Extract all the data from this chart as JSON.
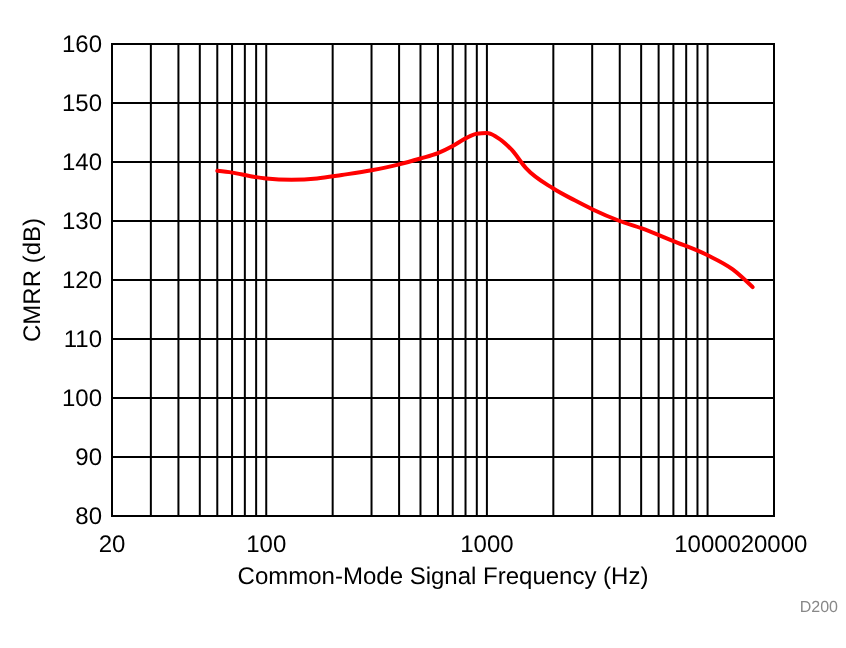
{
  "chart_data": {
    "type": "line",
    "xlabel": "Common-Mode Signal Frequency (Hz)",
    "ylabel": "CMRR (dB)",
    "log": "x",
    "grid": true,
    "xlim": [
      20,
      20000
    ],
    "xticks": [
      20,
      {
        "value": 30,
        "label": null
      },
      {
        "value": 40,
        "label": null
      },
      {
        "value": 50,
        "label": null
      },
      {
        "value": 60,
        "label": null
      },
      {
        "value": 70,
        "label": null
      },
      {
        "value": 80,
        "label": null
      },
      {
        "value": 90,
        "label": null
      },
      100,
      {
        "value": 200,
        "label": null
      },
      {
        "value": 300,
        "label": null
      },
      {
        "value": 400,
        "label": null
      },
      {
        "value": 500,
        "label": null
      },
      {
        "value": 600,
        "label": null
      },
      {
        "value": 700,
        "label": null
      },
      {
        "value": 800,
        "label": null
      },
      {
        "value": 900,
        "label": null
      },
      1000,
      {
        "value": 2000,
        "label": null
      },
      {
        "value": 3000,
        "label": null
      },
      {
        "value": 4000,
        "label": null
      },
      {
        "value": 5000,
        "label": null
      },
      {
        "value": 6000,
        "label": null
      },
      {
        "value": 7000,
        "label": null
      },
      {
        "value": 8000,
        "label": null
      },
      {
        "value": 9000,
        "label": null
      },
      10000,
      20000
    ],
    "ylim": [
      80,
      160
    ],
    "yticks": [
      80,
      90,
      100,
      110,
      120,
      130,
      140,
      150,
      160
    ],
    "annotations": [
      "D200"
    ],
    "series": [
      {
        "color": "#ff0000",
        "x": [
          60,
          70,
          85,
          100,
          130,
          170,
          220,
          300,
          400,
          500,
          600,
          700,
          800,
          900,
          1000,
          1100,
          1300,
          1500,
          2000,
          2500,
          3000,
          4000,
          5000,
          7000,
          10000,
          13000,
          16000
        ],
        "values": [
          138.5,
          138.2,
          137.6,
          137.2,
          137,
          137.2,
          137.8,
          138.6,
          139.6,
          140.6,
          141.5,
          142.7,
          144,
          144.8,
          144.9,
          144.3,
          142,
          139,
          135.5,
          133.5,
          132,
          130,
          128.8,
          126.6,
          124.2,
          121.8,
          118.8
        ]
      }
    ]
  }
}
